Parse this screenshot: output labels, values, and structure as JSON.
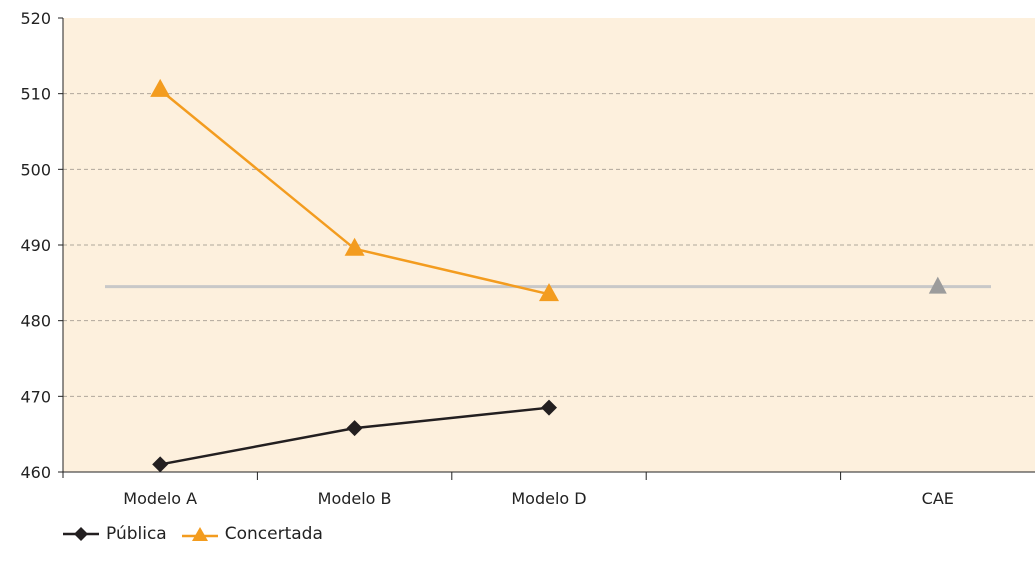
{
  "chart_data": {
    "type": "line",
    "categories": [
      "Modelo A",
      "Modelo B",
      "Modelo D",
      "",
      "CAE"
    ],
    "ylim": [
      460,
      520
    ],
    "yticks": [
      "460",
      "470",
      "480",
      "490",
      "500",
      "510",
      "520"
    ],
    "grid": true,
    "legend_position": "bottom-left",
    "series": [
      {
        "name": "Pública",
        "marker": "diamond",
        "color": "#231f20",
        "values": [
          461,
          465.8,
          468.5,
          null,
          null
        ]
      },
      {
        "name": "Concertada",
        "marker": "triangle",
        "color": "#f39c1f",
        "values": [
          510.5,
          489.5,
          483.5,
          null,
          null
        ]
      }
    ],
    "reference": {
      "value": 484.5,
      "color": "#c8c8c8",
      "marker_color": "#9c9c9c",
      "category": "CAE"
    }
  },
  "colors": {
    "plot_background": "#fdf0dd",
    "grid": "#b0a79c"
  },
  "legend": {
    "items": [
      {
        "label": "Pública"
      },
      {
        "label": "Concertada"
      }
    ]
  }
}
